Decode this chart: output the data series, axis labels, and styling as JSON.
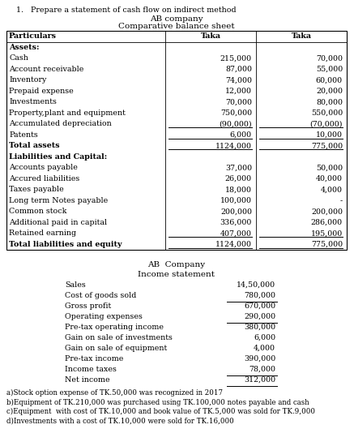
{
  "title_question": "1.   Prepare a statement of cash flow on indirect method",
  "balance_sheet_company": "AB company",
  "balance_sheet_title": "Comparative balance sheet",
  "bs_headers": [
    "Particulars",
    "Taka",
    "Taka"
  ],
  "bs_rows": [
    [
      "Assets:",
      "",
      ""
    ],
    [
      "Cash",
      "215,000",
      "70,000"
    ],
    [
      "Account receivable",
      "87,000",
      "55,000"
    ],
    [
      "Inventory",
      "74,000",
      "60,000"
    ],
    [
      "Prepaid expense",
      "12,000",
      "20,000"
    ],
    [
      "Investments",
      "70,000",
      "80,000"
    ],
    [
      "Property,plant and equipment",
      "750,000",
      "550,000"
    ],
    [
      "Accumulated depreciation",
      "(90,000)",
      "(70,000)"
    ],
    [
      "Patents",
      "6,000",
      "10,000"
    ],
    [
      "Total assets",
      "1124,000",
      "775,000"
    ],
    [
      "Liabilities and Capital:",
      "",
      ""
    ],
    [
      "Accounts payable",
      "37,000",
      "50,000"
    ],
    [
      "Accured liabilities",
      "26,000",
      "40,000"
    ],
    [
      "Taxes payable",
      "18,000",
      "4,000"
    ],
    [
      "Long term Notes payable",
      "100,000",
      "-"
    ],
    [
      "Common stock",
      "200,000",
      "200,000"
    ],
    [
      "Additional paid in capital",
      "336,000",
      "286,000"
    ],
    [
      "Retained earning",
      "407,000",
      "195,000"
    ],
    [
      "Total liabilities and equity",
      "1124,000",
      "775,000"
    ]
  ],
  "bs_underline_rows": [
    7,
    8,
    9,
    17,
    18
  ],
  "bs_double_underline_rows": [
    9,
    18
  ],
  "bs_bold_rows": [
    0,
    9,
    10,
    18
  ],
  "income_company": "AB  Company",
  "income_title": "Income statement",
  "income_rows": [
    [
      "Sales",
      "14,50,000"
    ],
    [
      "Cost of goods sold",
      "780,000"
    ],
    [
      "Gross profit",
      "670,000"
    ],
    [
      "Operating expenses",
      "290,000"
    ],
    [
      "Pre-tax operating income",
      "380,000"
    ],
    [
      "Gain on sale of investments",
      "6,000"
    ],
    [
      "Gain on sale of equipment",
      "4,000"
    ],
    [
      "Pre-tax income",
      "390,000"
    ],
    [
      "Income taxes",
      "78,000"
    ],
    [
      "Net income",
      "312,000"
    ]
  ],
  "income_underline_rows": [
    1,
    3,
    8,
    9
  ],
  "notes": [
    "a)Stock option expense of TK.50,000 was recognized in 2017",
    "b)Equipment of TK.210,000 was purchased using TK.100,000 notes payable and cash",
    "c)Equipment  with cost of TK.10,000 and book value of TK.5,000 was sold for TK.9,000",
    "d)Investments with a cost of TK.10,000 were sold for TK.16,000"
  ],
  "bg_color": "#ffffff",
  "text_color": "#000000",
  "fs": 6.8,
  "fs_title": 7.5,
  "fs_notes": 6.2
}
